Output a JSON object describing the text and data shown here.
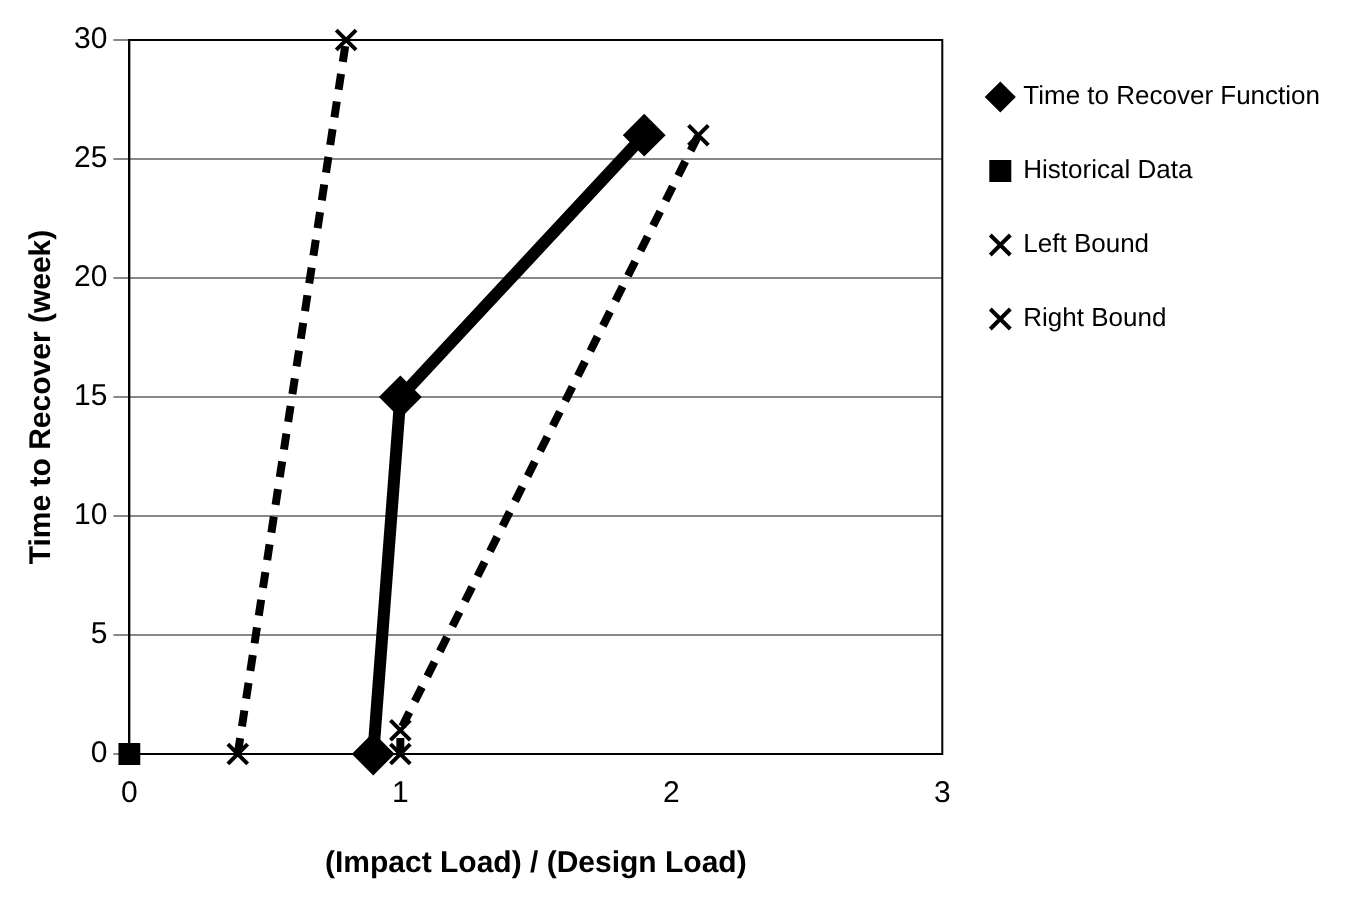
{
  "chart_data": {
    "type": "line",
    "xlabel": "(Impact Load) / (Design Load)",
    "ylabel": "Time to Recover (week)",
    "xlim": [
      0,
      3
    ],
    "xticks": [
      0,
      1,
      2,
      3
    ],
    "ylim": [
      0,
      30
    ],
    "yticks": [
      0,
      5,
      10,
      15,
      20,
      25,
      30
    ],
    "grid": "y",
    "legend": "right",
    "series": [
      {
        "name": "Time to Recover Function",
        "type": "line",
        "color": "#000000",
        "marker": "diamond",
        "line_style": "solid",
        "x": [
          0.9,
          1,
          1.9
        ],
        "values": [
          0,
          15,
          26
        ]
      },
      {
        "name": "Historical Data",
        "type": "scatter",
        "color": "#000000",
        "marker": "square",
        "x": [
          0
        ],
        "values": [
          0
        ]
      },
      {
        "name": "Left Bound",
        "type": "line",
        "color": "#000000",
        "marker": "cross",
        "line_style": "dashed",
        "x": [
          0.4,
          0.8
        ],
        "values": [
          0,
          30
        ]
      },
      {
        "name": "Right Bound",
        "type": "line",
        "color": "#000000",
        "marker": "cross",
        "line_style": "dashed",
        "x": [
          1,
          1,
          2.1
        ],
        "values": [
          0,
          1,
          26
        ]
      }
    ]
  }
}
